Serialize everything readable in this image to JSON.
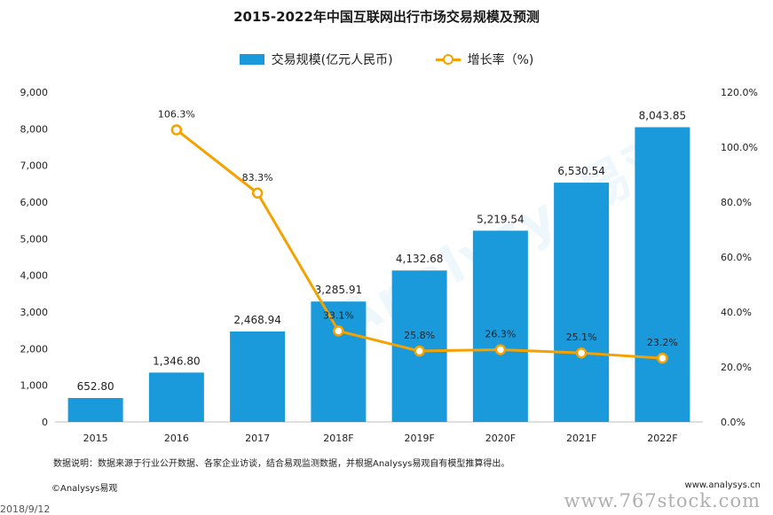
{
  "chart_data": {
    "type": "bar",
    "title": "2015-2022年中国互联网出行市场交易规模及预测",
    "categories": [
      "2015",
      "2016",
      "2017",
      "2018F",
      "2019F",
      "2020F",
      "2021F",
      "2022F"
    ],
    "series": [
      {
        "name": "交易规模(亿元人民币)",
        "type": "bar",
        "axis": "left",
        "values": [
          652.8,
          1346.8,
          2468.94,
          3285.91,
          4132.68,
          5219.54,
          6530.54,
          8043.85
        ],
        "labels": [
          "652.80",
          "1,346.80",
          "2,468.94",
          "3,285.91",
          "4,132.68",
          "5,219.54",
          "6,530.54",
          "8,043.85"
        ]
      },
      {
        "name": "增长率（%)",
        "type": "line",
        "axis": "right",
        "values": [
          null,
          106.3,
          83.3,
          33.1,
          25.8,
          26.3,
          25.1,
          23.2
        ],
        "labels": [
          "",
          "106.3%",
          "83.3%",
          "33.1%",
          "25.8%",
          "26.3%",
          "25.1%",
          "23.2%"
        ]
      }
    ],
    "ylim_left": [
      0,
      9000
    ],
    "yticks_left": [
      "0",
      "1,000",
      "2,000",
      "3,000",
      "4,000",
      "5,000",
      "6,000",
      "7,000",
      "8,000",
      "9,000"
    ],
    "ylim_right": [
      0,
      120
    ],
    "yticks_right": [
      "0.0%",
      "20.0%",
      "40.0%",
      "60.0%",
      "80.0%",
      "100.0%",
      "120.0%"
    ],
    "grid": false,
    "legend_position": "top-center"
  },
  "colors": {
    "bar": "#1A9ADB",
    "line": "#F5A200"
  },
  "watermark_text": "Analysys易观",
  "footnote": "数据说明：数据来源于行业公开数据、各家企业访谈，结合易观监测数据，并根据Analysys易观自有模型推算得出。",
  "copyright": "©Analysys易观",
  "site_url": "www.analysys.cn",
  "date_stamp": "2018/9/12",
  "stock_watermark": "www.767stock.com"
}
